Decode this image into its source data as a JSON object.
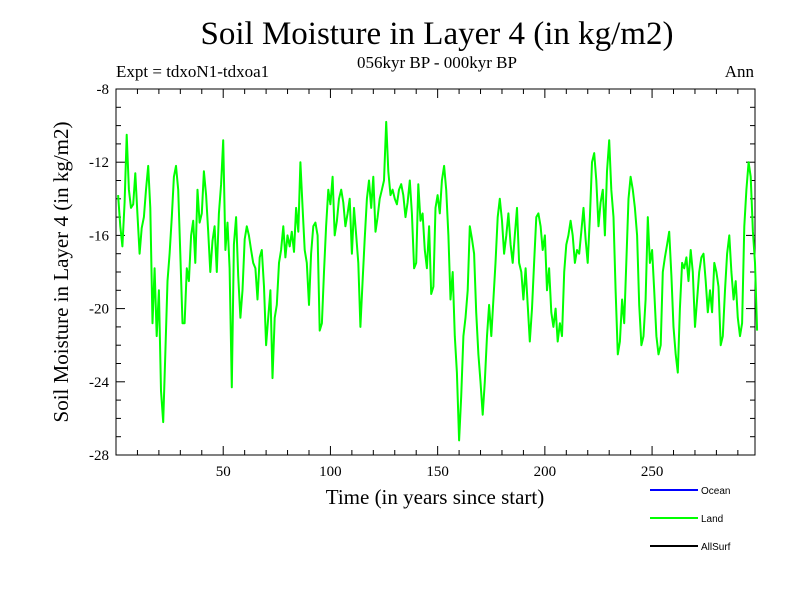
{
  "chart_data": {
    "type": "line",
    "title": "Soil Moisture in Layer 4 (in kg/m2)",
    "subtitle": "056kyr BP - 000kyr BP",
    "experiment": "Expt = tdxoN1-tdxoa1",
    "season": "Ann",
    "xlabel": "Time (in years since start)",
    "ylabel": "Soil Moisture in Layer 4 (in kg/m2)",
    "xlim": [
      0,
      298
    ],
    "ylim": [
      -28,
      -8
    ],
    "x_ticks": [
      50,
      100,
      150,
      200,
      250
    ],
    "y_ticks": [
      -8,
      -12,
      -16,
      -20,
      -24,
      -28
    ],
    "legend": [
      {
        "name": "Ocean",
        "color": "#0000ff"
      },
      {
        "name": "Land",
        "color": "#00ff00"
      },
      {
        "name": "AllSurf",
        "color": "#000000"
      }
    ],
    "series": [
      {
        "name": "Land",
        "color": "#00ff00",
        "x_start": 1,
        "x_step": 1,
        "values": [
          -13.8,
          -15.5,
          -16.6,
          -14.2,
          -10.5,
          -13.5,
          -14.5,
          -14.3,
          -12.6,
          -14.8,
          -17.0,
          -15.6,
          -15.0,
          -13.5,
          -12.2,
          -14.5,
          -20.8,
          -17.8,
          -21.5,
          -19.0,
          -24.5,
          -26.2,
          -22.5,
          -18.5,
          -17.0,
          -15.0,
          -12.8,
          -12.2,
          -13.5,
          -17.0,
          -20.8,
          -20.8,
          -17.8,
          -18.5,
          -16.0,
          -15.2,
          -17.5,
          -13.5,
          -15.3,
          -14.8,
          -12.5,
          -13.8,
          -15.8,
          -18.0,
          -16.3,
          -15.5,
          -18.0,
          -14.8,
          -13.2,
          -10.8,
          -16.8,
          -15.3,
          -17.8,
          -24.3,
          -16.5,
          -15.0,
          -18.2,
          -20.5,
          -19.0,
          -16.2,
          -15.5,
          -16.0,
          -16.8,
          -17.5,
          -17.8,
          -19.5,
          -17.2,
          -16.8,
          -18.8,
          -22.0,
          -20.5,
          -19.0,
          -23.8,
          -20.5,
          -19.8,
          -17.5,
          -16.8,
          -15.5,
          -17.2,
          -16.0,
          -16.6,
          -15.8,
          -16.9,
          -14.5,
          -15.8,
          -12.0,
          -14.5,
          -16.8,
          -17.5,
          -19.8,
          -17.0,
          -15.5,
          -15.3,
          -16.0,
          -21.2,
          -20.8,
          -18.0,
          -15.5,
          -13.5,
          -14.3,
          -12.8,
          -16.0,
          -15.2,
          -14.0,
          -13.5,
          -14.2,
          -15.5,
          -14.8,
          -14.0,
          -17.0,
          -14.5,
          -16.0,
          -17.5,
          -21.0,
          -18.5,
          -16.2,
          -14.0,
          -13.0,
          -14.5,
          -12.8,
          -15.8,
          -15.0,
          -14.0,
          -13.5,
          -13.0,
          -9.8,
          -12.5,
          -13.8,
          -13.5,
          -14.0,
          -14.3,
          -13.5,
          -13.2,
          -13.8,
          -15.0,
          -14.2,
          -13.0,
          -14.8,
          -17.8,
          -17.5,
          -13.2,
          -15.2,
          -14.8,
          -16.8,
          -17.8,
          -15.5,
          -19.2,
          -18.8,
          -14.5,
          -13.8,
          -14.8,
          -13.0,
          -12.2,
          -13.5,
          -16.0,
          -19.5,
          -18.0,
          -21.5,
          -23.5,
          -27.2,
          -24.8,
          -21.5,
          -20.5,
          -19.0,
          -15.5,
          -16.2,
          -17.0,
          -20.2,
          -22.5,
          -24.0,
          -25.8,
          -24.0,
          -21.5,
          -19.8,
          -21.5,
          -19.5,
          -17.5,
          -15.0,
          -14.0,
          -15.2,
          -17.0,
          -16.0,
          -14.8,
          -16.5,
          -17.5,
          -16.0,
          -14.5,
          -17.5,
          -18.0,
          -19.5,
          -17.8,
          -19.8,
          -21.8,
          -20.0,
          -17.5,
          -15.0,
          -14.8,
          -15.5,
          -16.8,
          -16.0,
          -19.0,
          -17.8,
          -20.2,
          -21.0,
          -20.0,
          -21.8,
          -20.8,
          -21.5,
          -18.0,
          -16.5,
          -16.0,
          -15.2,
          -16.0,
          -17.5,
          -16.8,
          -17.0,
          -15.8,
          -14.5,
          -16.2,
          -17.5,
          -15.0,
          -12.0,
          -11.5,
          -13.0,
          -15.5,
          -14.2,
          -13.5,
          -16.0,
          -12.5,
          -10.8,
          -13.5,
          -15.0,
          -19.0,
          -22.5,
          -21.8,
          -19.5,
          -20.8,
          -17.5,
          -14.0,
          -12.8,
          -13.5,
          -14.5,
          -16.0,
          -19.8,
          -22.0,
          -21.5,
          -19.5,
          -15.0,
          -17.5,
          -16.8,
          -19.0,
          -21.5,
          -22.5,
          -22.0,
          -18.0,
          -17.2,
          -16.5,
          -15.8,
          -18.2,
          -21.0,
          -22.5,
          -23.5,
          -20.0,
          -17.5,
          -17.8,
          -17.2,
          -18.5,
          -16.8,
          -18.0,
          -21.0,
          -19.5,
          -18.0,
          -17.2,
          -17.0,
          -18.5,
          -20.2,
          -19.0,
          -20.2,
          -17.5,
          -18.0,
          -18.8,
          -22.0,
          -21.5,
          -19.0,
          -17.0,
          -16.0,
          -18.0,
          -19.5,
          -18.5,
          -20.5,
          -21.5,
          -20.8,
          -15.5,
          -13.5,
          -12.0,
          -12.8,
          -15.8,
          -17.5,
          -21.2
        ]
      }
    ]
  }
}
